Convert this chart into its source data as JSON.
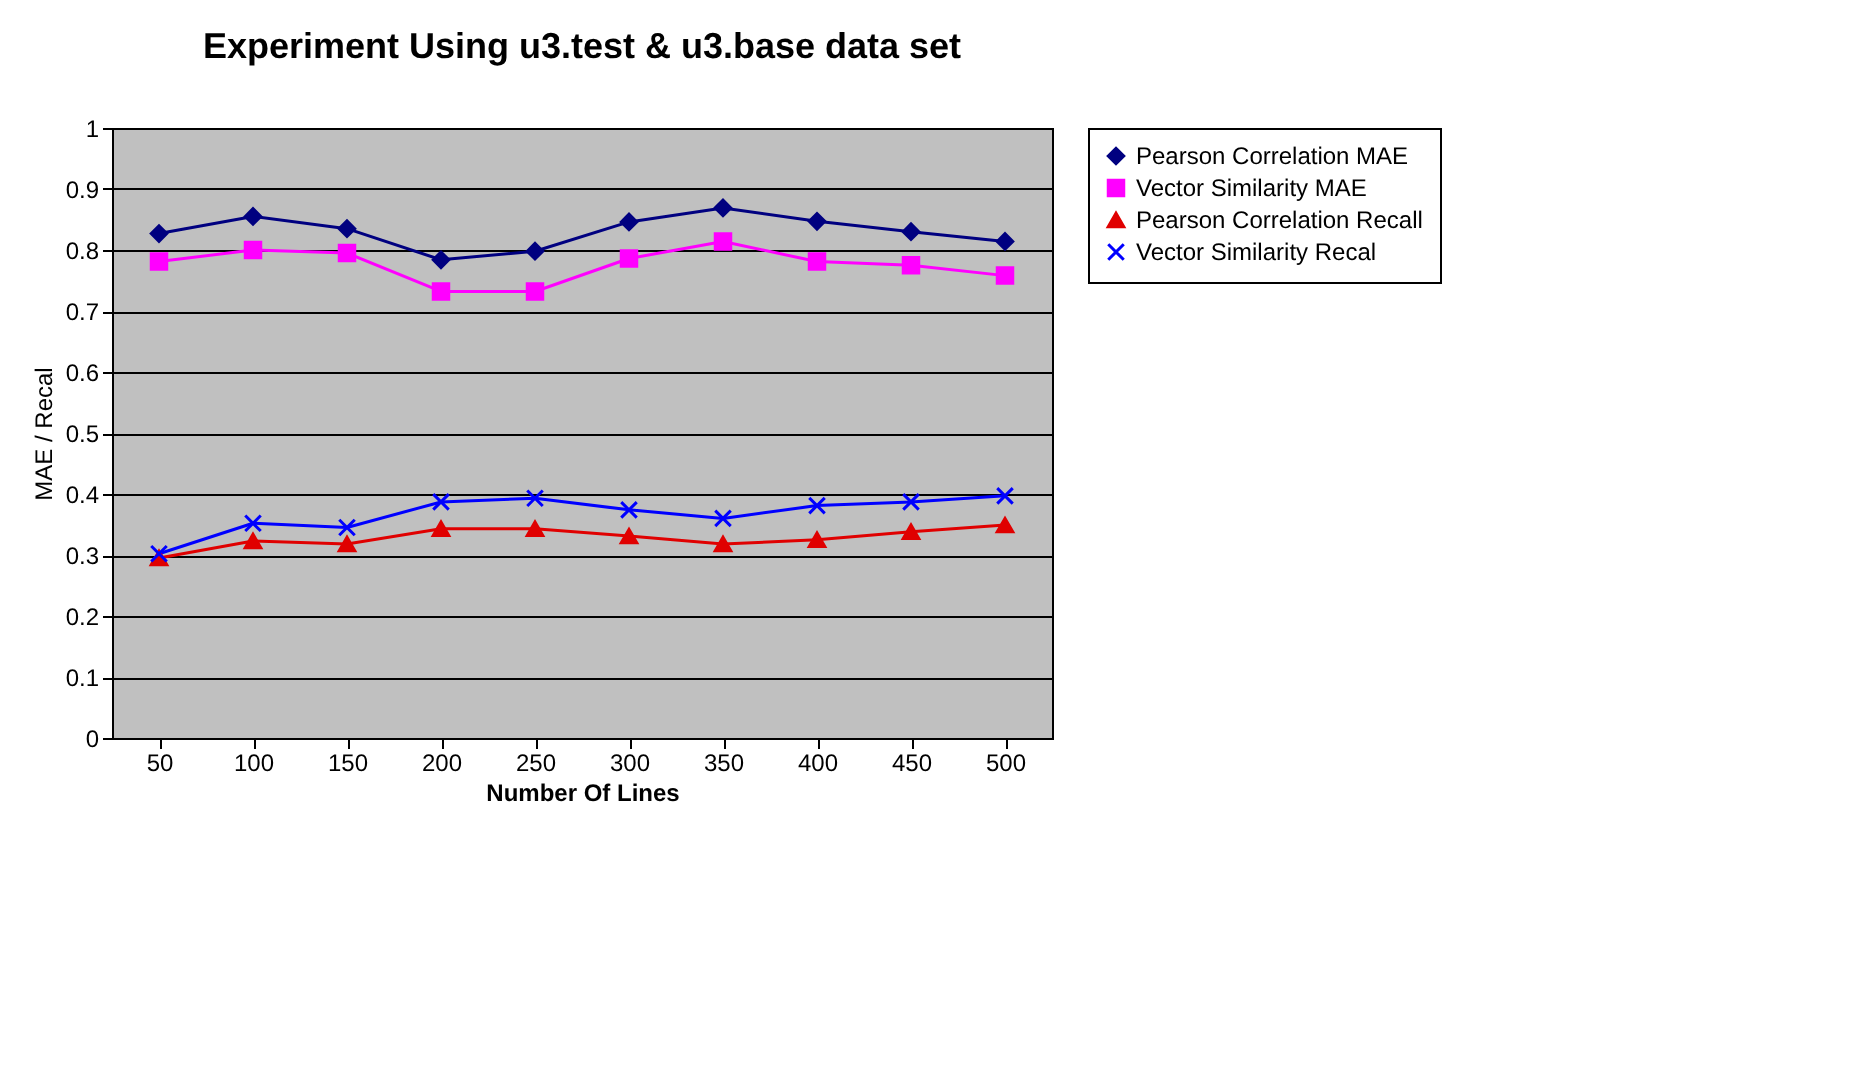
{
  "chart_data": {
    "type": "line",
    "title": "Experiment Using u3.test & u3.base data set",
    "xlabel": "Number Of Lines",
    "ylabel": "MAE / Recal",
    "categories": [
      "50",
      "100",
      "150",
      "200",
      "250",
      "300",
      "350",
      "400",
      "450",
      "500"
    ],
    "series": [
      {
        "name": "Pearson Correlation MAE",
        "color": "#000080",
        "marker": "diamond",
        "values": [
          0.827,
          0.855,
          0.835,
          0.784,
          0.798,
          0.846,
          0.869,
          0.847,
          0.83,
          0.814
        ]
      },
      {
        "name": "Vector Similarity MAE",
        "color": "#ff00ff",
        "marker": "square",
        "values": [
          0.781,
          0.8,
          0.795,
          0.732,
          0.732,
          0.786,
          0.814,
          0.781,
          0.775,
          0.758
        ]
      },
      {
        "name": "Pearson Correlation Recall",
        "color": "#e00000",
        "marker": "triangle",
        "values": [
          0.295,
          0.323,
          0.318,
          0.343,
          0.343,
          0.331,
          0.318,
          0.325,
          0.338,
          0.349
        ]
      },
      {
        "name": "Vector Similarity Recal",
        "color": "#0000ff",
        "marker": "cross",
        "values": [
          0.302,
          0.352,
          0.345,
          0.387,
          0.393,
          0.374,
          0.36,
          0.381,
          0.387,
          0.397
        ]
      }
    ],
    "ylim": [
      0,
      1
    ],
    "yticks": [
      0,
      0.1,
      0.2,
      0.3,
      0.4,
      0.5,
      0.6,
      0.7,
      0.8,
      0.9,
      1
    ],
    "grid": "y",
    "legend": "right"
  }
}
